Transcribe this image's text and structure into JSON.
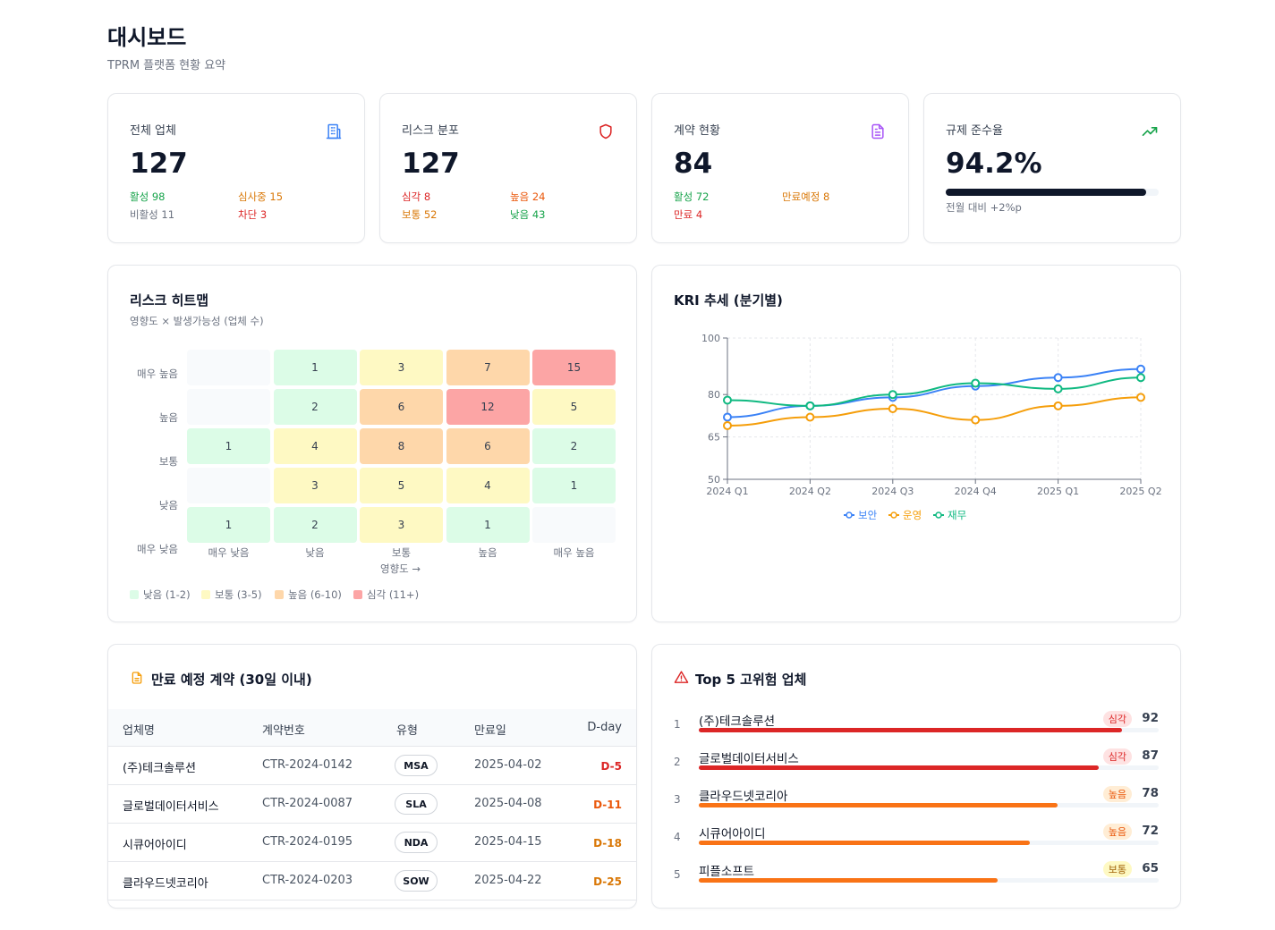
{
  "header": {
    "title": "대시보드",
    "subtitle": "TPRM 플랫폼 현황 요약"
  },
  "stats": {
    "vendors": {
      "label": "전체 업체",
      "value": "127",
      "icon": "building-icon",
      "active": "활성 98",
      "review": "심사중 15",
      "inactive": "비활성 11",
      "blocked": "차단 3"
    },
    "risk": {
      "label": "리스크 분포",
      "value": "127",
      "icon": "shield-icon",
      "critical": "심각 8",
      "high": "높음 24",
      "medium": "보통 52",
      "low": "낮음 43"
    },
    "contracts": {
      "label": "계약 현황",
      "value": "84",
      "icon": "document-icon",
      "active": "활성 72",
      "expiring": "만료예정 8",
      "expired": "만료 4"
    },
    "compliance": {
      "label": "규제 준수율",
      "value": "94.2%",
      "icon": "trending-up-icon",
      "progress": 94.2,
      "delta": "전월 대비 +2%p"
    }
  },
  "colors": {
    "green": "#16a34a",
    "orange": "#d97706",
    "red": "#dc2626",
    "gray": "#6b7280",
    "blue": "#3b82f6",
    "amber": "#f59e0b",
    "emerald": "#10b981"
  },
  "heatmap": {
    "title": "리스크 히트맵",
    "subtitle": "영향도 × 발생가능성 (업체 수)",
    "x_axis_title": "영향도 →",
    "y_labels": [
      "매우 높음",
      "높음",
      "보통",
      "낮음",
      "매우 낮음"
    ],
    "x_labels": [
      "매우 낮음",
      "낮음",
      "보통",
      "높음",
      "매우 높음"
    ],
    "rows": [
      [
        null,
        1,
        3,
        7,
        15
      ],
      [
        null,
        2,
        6,
        12,
        5
      ],
      [
        1,
        4,
        8,
        6,
        2
      ],
      [
        null,
        3,
        5,
        4,
        1
      ],
      [
        1,
        2,
        3,
        1,
        null
      ]
    ],
    "legend": [
      {
        "label": "낮음 (1-2)",
        "color": "#dcfce7"
      },
      {
        "label": "보통 (3-5)",
        "color": "#fef9c3"
      },
      {
        "label": "높음 (6-10)",
        "color": "#fed7aa"
      },
      {
        "label": "심각 (11+)",
        "color": "#fca5a5"
      }
    ]
  },
  "chart_data": {
    "type": "line",
    "title": "KRI 추세 (분기별)",
    "x": [
      "2024 Q1",
      "2024 Q2",
      "2024 Q3",
      "2024 Q4",
      "2025 Q1",
      "2025 Q2"
    ],
    "series": [
      {
        "name": "보안",
        "color": "#3b82f6",
        "values": [
          72,
          76,
          79,
          83,
          86,
          89
        ]
      },
      {
        "name": "운영",
        "color": "#f59e0b",
        "values": [
          69,
          72,
          75,
          71,
          76,
          79
        ]
      },
      {
        "name": "재무",
        "color": "#10b981",
        "values": [
          78,
          76,
          80,
          84,
          82,
          86
        ]
      }
    ],
    "ylim": [
      50,
      100
    ],
    "yticks": [
      50,
      65,
      80,
      100
    ],
    "grid": true,
    "legend": "bottom"
  },
  "expiring": {
    "title": "만료 예정 계약 (30일 이내)",
    "icon": "file-icon",
    "columns": [
      "업체명",
      "계약번호",
      "유형",
      "만료일",
      "D-day"
    ],
    "rows": [
      {
        "vendor": "(주)테크솔루션",
        "code": "CTR-2024-0142",
        "type": "MSA",
        "date": "2025-04-02",
        "dday": "D-5",
        "color": "#dc2626"
      },
      {
        "vendor": "글로벌데이터서비스",
        "code": "CTR-2024-0087",
        "type": "SLA",
        "date": "2025-04-08",
        "dday": "D-11",
        "color": "#ea580c"
      },
      {
        "vendor": "시큐어아이디",
        "code": "CTR-2024-0195",
        "type": "NDA",
        "date": "2025-04-15",
        "dday": "D-18",
        "color": "#d97706"
      },
      {
        "vendor": "클라우드넷코리아",
        "code": "CTR-2024-0203",
        "type": "SOW",
        "date": "2025-04-22",
        "dday": "D-25",
        "color": "#d97706"
      }
    ]
  },
  "top5": {
    "title": "Top 5 고위험 업체",
    "icon": "alert-triangle-icon",
    "items": [
      {
        "rank": "1",
        "name": "(주)테크솔루션",
        "level": "심각",
        "score": "92",
        "pct": 92,
        "badge_bg": "#fee2e2",
        "badge_fg": "#dc2626",
        "bar": "#dc2626"
      },
      {
        "rank": "2",
        "name": "글로벌데이터서비스",
        "level": "심각",
        "score": "87",
        "pct": 87,
        "badge_bg": "#fee2e2",
        "badge_fg": "#dc2626",
        "bar": "#dc2626"
      },
      {
        "rank": "3",
        "name": "클라우드넷코리아",
        "level": "높음",
        "score": "78",
        "pct": 78,
        "badge_bg": "#ffedd5",
        "badge_fg": "#ea580c",
        "bar": "#f97316"
      },
      {
        "rank": "4",
        "name": "시큐어아이디",
        "level": "높음",
        "score": "72",
        "pct": 72,
        "badge_bg": "#ffedd5",
        "badge_fg": "#ea580c",
        "bar": "#f97316"
      },
      {
        "rank": "5",
        "name": "피플소프트",
        "level": "보통",
        "score": "65",
        "pct": 65,
        "badge_bg": "#fef9c3",
        "badge_fg": "#a16207",
        "bar": "#f97316"
      }
    ]
  }
}
